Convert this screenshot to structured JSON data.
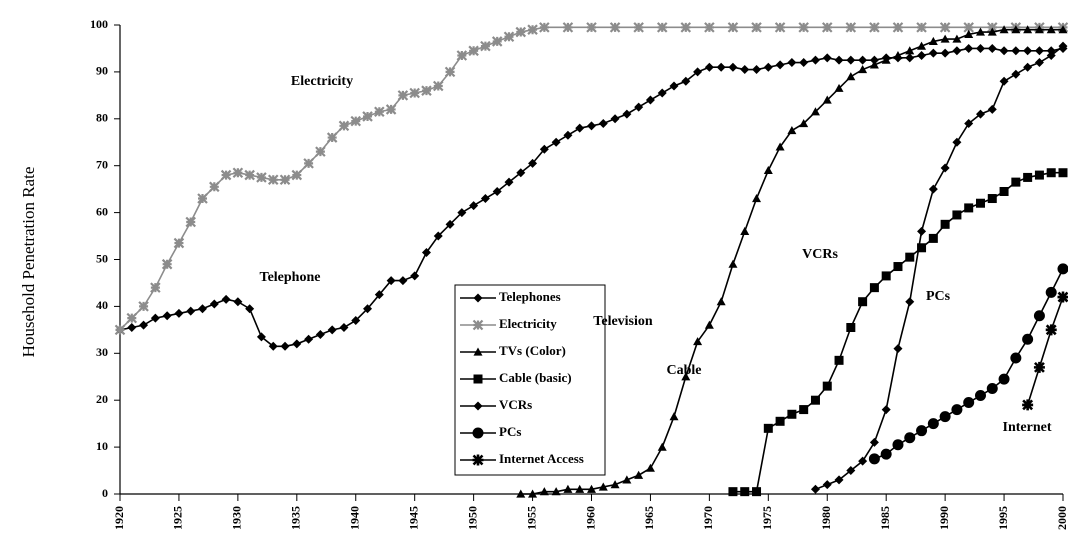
{
  "chart_data": {
    "type": "line",
    "y_label": "Household Penetration Rate",
    "annotations": [
      "Electricity",
      "Telephone",
      "Television",
      "Cable",
      "VCRs",
      "PCs",
      "Internet"
    ],
    "xlim": [
      1920,
      2000
    ],
    "xticks": [
      1920,
      1925,
      1930,
      1935,
      1940,
      1945,
      1950,
      1955,
      1960,
      1965,
      1970,
      1975,
      1980,
      1985,
      1990,
      1995,
      2000
    ],
    "ylim": [
      0,
      100
    ],
    "yticks": [
      0,
      10,
      20,
      30,
      40,
      50,
      60,
      70,
      80,
      90,
      100
    ],
    "grid": false,
    "series": [
      {
        "name": "Telephones",
        "color": "#000000",
        "marker": "diamond",
        "x": [
          1920,
          1921,
          1922,
          1923,
          1924,
          1925,
          1926,
          1927,
          1928,
          1929,
          1930,
          1931,
          1932,
          1933,
          1934,
          1935,
          1936,
          1937,
          1938,
          1939,
          1940,
          1941,
          1942,
          1943,
          1944,
          1945,
          1946,
          1947,
          1948,
          1949,
          1950,
          1951,
          1952,
          1953,
          1954,
          1955,
          1956,
          1957,
          1958,
          1959,
          1960,
          1961,
          1962,
          1963,
          1964,
          1965,
          1966,
          1967,
          1968,
          1969,
          1970,
          1971,
          1972,
          1973,
          1974,
          1975,
          1976,
          1977,
          1978,
          1979,
          1980,
          1981,
          1982,
          1983,
          1984,
          1985,
          1986,
          1987,
          1988,
          1989,
          1990,
          1991,
          1992,
          1993,
          1994,
          1995,
          1996,
          1997,
          1998,
          1999,
          2000
        ],
        "values": [
          35,
          35.5,
          36,
          37.5,
          38,
          38.5,
          39,
          39.5,
          40.5,
          41.5,
          41,
          39.5,
          33.5,
          31.5,
          31.5,
          32,
          33,
          34,
          35,
          35.5,
          37,
          39.5,
          42.5,
          45.5,
          45.5,
          46.5,
          51.5,
          55,
          57.5,
          60,
          61.5,
          63,
          64.5,
          66.5,
          68.5,
          70.5,
          73.5,
          75,
          76.5,
          78,
          78.5,
          79,
          80,
          81,
          82.5,
          84,
          85.5,
          87,
          88,
          90,
          91,
          91,
          91,
          90.5,
          90.5,
          91,
          91.5,
          92,
          92,
          92.5,
          93,
          92.5,
          92.5,
          92.5,
          92.5,
          93,
          93,
          93,
          93.5,
          94,
          94,
          94.5,
          95,
          95,
          95,
          94.5,
          94.5,
          94.5,
          94.5,
          94.5,
          95
        ]
      },
      {
        "name": "Electricity",
        "color": "#8c8c8c",
        "marker": "asterisk",
        "x": [
          1920,
          1921,
          1922,
          1923,
          1924,
          1925,
          1926,
          1927,
          1928,
          1929,
          1930,
          1931,
          1932,
          1933,
          1934,
          1935,
          1936,
          1937,
          1938,
          1939,
          1940,
          1941,
          1942,
          1943,
          1944,
          1945,
          1946,
          1947,
          1948,
          1949,
          1950,
          1951,
          1952,
          1953,
          1954,
          1955,
          1956,
          1958,
          1960,
          1962,
          1964,
          1966,
          1968,
          1970,
          1972,
          1974,
          1976,
          1978,
          1980,
          1982,
          1984,
          1986,
          1988,
          1990,
          1992,
          1994,
          1996,
          1998,
          2000
        ],
        "values": [
          35,
          37.5,
          40,
          44,
          49,
          53.5,
          58,
          63,
          65.5,
          68,
          68.5,
          68,
          67.5,
          67,
          67,
          68,
          70.5,
          73,
          76,
          78.5,
          79.5,
          80.5,
          81.5,
          82,
          85,
          85.5,
          86,
          87,
          90,
          93.5,
          94.5,
          95.5,
          96.5,
          97.5,
          98.5,
          99,
          99.5,
          99.5,
          99.5,
          99.5,
          99.5,
          99.5,
          99.5,
          99.5,
          99.5,
          99.5,
          99.5,
          99.5,
          99.5,
          99.5,
          99.5,
          99.5,
          99.5,
          99.5,
          99.5,
          99.5,
          99.5,
          99.5,
          99.5
        ]
      },
      {
        "name": "TVs (Color)",
        "color": "#000000",
        "marker": "triangle",
        "x": [
          1954,
          1955,
          1956,
          1957,
          1958,
          1959,
          1960,
          1961,
          1962,
          1963,
          1964,
          1965,
          1966,
          1967,
          1968,
          1969,
          1970,
          1971,
          1972,
          1973,
          1974,
          1975,
          1976,
          1977,
          1978,
          1979,
          1980,
          1981,
          1982,
          1983,
          1984,
          1985,
          1986,
          1987,
          1988,
          1989,
          1990,
          1991,
          1992,
          1993,
          1994,
          1995,
          1996,
          1997,
          1998,
          1999,
          2000
        ],
        "values": [
          0,
          0,
          0.5,
          0.5,
          1,
          1,
          1,
          1.5,
          2,
          3,
          4,
          5.5,
          10,
          16.5,
          25,
          32.5,
          36,
          41,
          49,
          56,
          63,
          69,
          74,
          77.5,
          79,
          81.5,
          84,
          86.5,
          89,
          90.5,
          91.5,
          92.5,
          93.5,
          94.5,
          95.5,
          96.5,
          97,
          97,
          98,
          98.5,
          98.5,
          99,
          99,
          99,
          99,
          99,
          99
        ]
      },
      {
        "name": "Cable (basic)",
        "color": "#000000",
        "marker": "square",
        "x": [
          1972,
          1973,
          1974,
          1975,
          1976,
          1977,
          1978,
          1979,
          1980,
          1981,
          1982,
          1983,
          1984,
          1985,
          1986,
          1987,
          1988,
          1989,
          1990,
          1991,
          1992,
          1993,
          1994,
          1995,
          1996,
          1997,
          1998,
          1999,
          2000
        ],
        "values": [
          0.5,
          0.5,
          0.5,
          14,
          15.5,
          17,
          18,
          20,
          23,
          28.5,
          35.5,
          41,
          44,
          46.5,
          48.5,
          50.5,
          52.5,
          54.5,
          57.5,
          59.5,
          61,
          62,
          63,
          64.5,
          66.5,
          67.5,
          68,
          68.5,
          68.5
        ]
      },
      {
        "name": "VCRs",
        "color": "#000000",
        "marker": "diamond",
        "x": [
          1979,
          1980,
          1981,
          1982,
          1983,
          1984,
          1985,
          1986,
          1987,
          1988,
          1989,
          1990,
          1991,
          1992,
          1993,
          1994,
          1995,
          1996,
          1997,
          1998,
          1999,
          2000
        ],
        "values": [
          1,
          2,
          3,
          5,
          7,
          11,
          18,
          31,
          41,
          56,
          65,
          69.5,
          75,
          79,
          81,
          82,
          88,
          89.5,
          91,
          92,
          93.5,
          95.5
        ]
      },
      {
        "name": "PCs",
        "color": "#000000",
        "marker": "circle",
        "x": [
          1984,
          1985,
          1986,
          1987,
          1988,
          1989,
          1990,
          1991,
          1992,
          1993,
          1994,
          1995,
          1996,
          1997,
          1998,
          1999,
          2000
        ],
        "values": [
          7.5,
          8.5,
          10.5,
          12,
          13.5,
          15,
          16.5,
          18,
          19.5,
          21,
          22.5,
          24.5,
          29,
          33,
          38,
          43,
          48
        ]
      },
      {
        "name": "Internet Access",
        "color": "#000000",
        "marker": "star",
        "x": [
          1997,
          1998,
          1999,
          2000
        ],
        "values": [
          19,
          27,
          35,
          42
        ]
      }
    ]
  }
}
